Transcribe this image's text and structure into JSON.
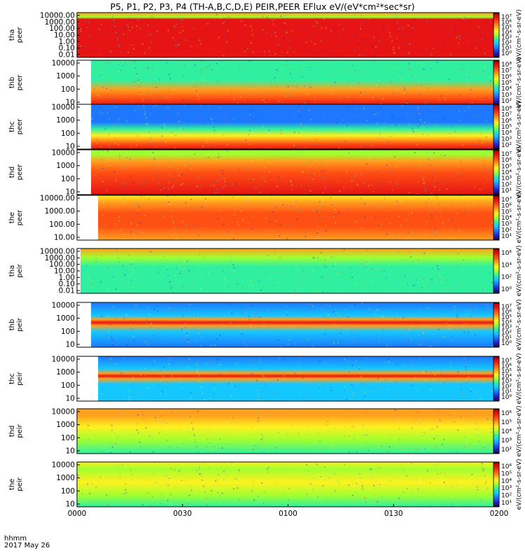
{
  "title": "P5, P1, P2, P3, P4 (TH-A,B,C,D,E) PEIR,PEER EFlux eV/(eV*cm²*sec*sr)",
  "footer": {
    "time_label": "hhmm",
    "date_label": "2017 May 26"
  },
  "colors": {
    "colorscale": [
      "#2a006e",
      "#1e28d2",
      "#1e78ff",
      "#14c8ff",
      "#30f0a0",
      "#a0ff30",
      "#fff01e",
      "#ffa01e",
      "#ff5014",
      "#e61414",
      "#b40000"
    ],
    "curve": "#000000"
  },
  "chart_data": {
    "type": "heatmap",
    "x_ticks": [
      "0000",
      "0030",
      "0100",
      "0130",
      "0200"
    ],
    "x_range": [
      0,
      120
    ],
    "x_unit": "minutes after 0000 UT",
    "panels": [
      {
        "id": "tha-peer",
        "ylabel": [
          "tha",
          "peer"
        ],
        "yticks": [
          "10000.00",
          "1000.00",
          "100.00",
          "10.00",
          "1.00",
          "0.10",
          "0.01"
        ],
        "ylim": [
          0.01,
          30000
        ],
        "yscale": "log",
        "data_start": 0,
        "cbar_ticks": [
          "10⁷",
          "10⁶",
          "10⁵",
          "10⁴",
          "10³",
          "10²",
          "10¹",
          "10⁰"
        ],
        "cbar_label": "eV/(cm²-s-sr-eV)",
        "profile": [
          [
            0.01,
            "#e61414"
          ],
          [
            0.85,
            "#e61414"
          ],
          [
            0.9,
            "#a0ff30"
          ],
          [
            1,
            "#ffa01e"
          ]
        ]
      },
      {
        "id": "thb-peer",
        "ylabel": [
          "thb",
          "peer"
        ],
        "yticks": [
          "10000",
          "1000",
          "100",
          "10"
        ],
        "ylim": [
          7,
          20000
        ],
        "yscale": "log",
        "data_start": 4,
        "cbar_ticks": [
          "10⁸",
          "10⁷",
          "10⁶",
          "10⁵",
          "10⁴",
          "10³",
          "10²"
        ],
        "cbar_label": "eV/(cm²-s-sr-eV)",
        "profile": [
          [
            0,
            "#e61414"
          ],
          [
            0.15,
            "#ff5014"
          ],
          [
            0.35,
            "#ffa01e"
          ],
          [
            0.55,
            "#30f0a0"
          ],
          [
            1,
            "#30f0a0"
          ]
        ]
      },
      {
        "id": "thc-peer",
        "ylabel": [
          "thc",
          "peer"
        ],
        "yticks": [
          "10000",
          "1000",
          "100",
          "10"
        ],
        "ylim": [
          7,
          20000
        ],
        "yscale": "log",
        "data_start": 4,
        "cbar_ticks": [
          "10⁸",
          "10⁷",
          "10⁶",
          "10⁵",
          "10⁴",
          "10³",
          "10²"
        ],
        "cbar_label": "eV/(cm²-s-sr-eV)",
        "profile": [
          [
            0,
            "#e61414"
          ],
          [
            0.12,
            "#ff5014"
          ],
          [
            0.3,
            "#fff01e"
          ],
          [
            0.45,
            "#30f0a0"
          ],
          [
            0.6,
            "#1e78ff"
          ],
          [
            1,
            "#1e78ff"
          ]
        ]
      },
      {
        "id": "thd-peer",
        "ylabel": [
          "thd",
          "peer"
        ],
        "yticks": [
          "10000",
          "1000",
          "100",
          "10"
        ],
        "ylim": [
          7,
          20000
        ],
        "yscale": "log",
        "data_start": 4,
        "cbar_ticks": [
          "10⁷",
          "10⁶",
          "10⁵",
          "10⁴",
          "10³",
          "10²",
          "10¹"
        ],
        "cbar_label": "eV/(cm²-s-sr-eV)",
        "profile": [
          [
            0,
            "#e61414"
          ],
          [
            0.5,
            "#ff5014"
          ],
          [
            0.75,
            "#ffa01e"
          ],
          [
            0.9,
            "#a0ff30"
          ],
          [
            1,
            "#a0ff30"
          ]
        ]
      },
      {
        "id": "the-peer",
        "ylabel": [
          "the",
          "peer"
        ],
        "yticks": [
          "10000.00",
          "1000.00",
          "100.00",
          "10.00"
        ],
        "ylim": [
          4,
          30000
        ],
        "yscale": "log",
        "data_start": 6,
        "cbar_ticks": [
          "10⁷",
          "10⁶",
          "10⁵",
          "10⁴",
          "10³",
          "10²",
          "10¹"
        ],
        "cbar_label": "eV/(cm²-s-sr-eV)",
        "profile": [
          [
            0,
            "#ffa01e"
          ],
          [
            0.3,
            "#ff5014"
          ],
          [
            0.6,
            "#ff5014"
          ],
          [
            0.85,
            "#ffa01e"
          ],
          [
            1,
            "#fff01e"
          ]
        ]
      },
      {
        "id": "tha-peir",
        "ylabel": [
          "tha",
          "peir"
        ],
        "yticks": [
          "10000.00",
          "1000.00",
          "100.00",
          "10.00",
          "1.00",
          "0.10",
          "0.01"
        ],
        "ylim": [
          0.01,
          30000
        ],
        "yscale": "log",
        "data_start": 1,
        "cbar_ticks": [
          "10⁶",
          "10⁴",
          "10²",
          "10⁰"
        ],
        "cbar_label": "eV/(cm²-s-sr-eV)",
        "profile": [
          [
            0.01,
            "#30f0a0"
          ],
          [
            0.6,
            "#30f0a0"
          ],
          [
            0.8,
            "#a0ff30"
          ],
          [
            1,
            "#ffa01e"
          ]
        ]
      },
      {
        "id": "thb-peir",
        "ylabel": [
          "thb",
          "peir"
        ],
        "yticks": [
          "10000",
          "1000",
          "100",
          "10"
        ],
        "ylim": [
          7,
          20000
        ],
        "yscale": "log",
        "data_start": 4,
        "cbar_ticks": [
          "10⁷",
          "10⁶",
          "10⁵",
          "10⁴",
          "10³",
          "10²",
          "10¹",
          "10⁰"
        ],
        "cbar_label": "eV/(cm²-s-sr-eV)",
        "profile": [
          [
            0,
            "#1e78ff"
          ],
          [
            0.35,
            "#14c8ff"
          ],
          [
            0.48,
            "#ffa01e"
          ],
          [
            0.55,
            "#e61414"
          ],
          [
            0.62,
            "#ffa01e"
          ],
          [
            0.7,
            "#14c8ff"
          ],
          [
            1,
            "#1e78ff"
          ]
        ]
      },
      {
        "id": "thc-peir",
        "ylabel": [
          "thc",
          "peir"
        ],
        "yticks": [
          "10000",
          "1000",
          "100",
          "10"
        ],
        "ylim": [
          7,
          20000
        ],
        "yscale": "log",
        "data_start": 6,
        "cbar_ticks": [
          "10⁷",
          "10⁶",
          "10⁵",
          "10⁴",
          "10³",
          "10²",
          "10¹",
          "10⁰"
        ],
        "cbar_label": "eV/(cm²-s-sr-eV)",
        "profile": [
          [
            0,
            "#14c8ff"
          ],
          [
            0.38,
            "#14c8ff"
          ],
          [
            0.5,
            "#ffa01e"
          ],
          [
            0.56,
            "#e61414"
          ],
          [
            0.62,
            "#ffa01e"
          ],
          [
            0.72,
            "#14c8ff"
          ],
          [
            1,
            "#1e78ff"
          ]
        ]
      },
      {
        "id": "thd-peir",
        "ylabel": [
          "thd",
          "peir"
        ],
        "yticks": [
          "10000",
          "1000",
          "100",
          "10"
        ],
        "ylim": [
          7,
          20000
        ],
        "yscale": "log",
        "data_start": 0,
        "cbar_ticks": [
          "10⁶",
          "10⁵",
          "10⁴",
          "10³",
          "10²"
        ],
        "cbar_label": "eV/(cm²-s-sr-eV)",
        "profile": [
          [
            0,
            "#30f0a0"
          ],
          [
            0.3,
            "#a0ff30"
          ],
          [
            0.6,
            "#fff01e"
          ],
          [
            0.85,
            "#ffa01e"
          ],
          [
            1,
            "#ffa01e"
          ]
        ]
      },
      {
        "id": "the-peir",
        "ylabel": [
          "the",
          "peir"
        ],
        "yticks": [
          "10000",
          "1000",
          "100",
          "10"
        ],
        "ylim": [
          7,
          20000
        ],
        "yscale": "log",
        "data_start": 0,
        "cbar_ticks": [
          "10⁶",
          "10⁵",
          "10⁴",
          "10³",
          "10²",
          "10¹"
        ],
        "cbar_label": "eV/(cm²-s-sr-eV)",
        "profile": [
          [
            0,
            "#30f0a0"
          ],
          [
            0.25,
            "#a0ff30"
          ],
          [
            0.55,
            "#fff01e"
          ],
          [
            0.85,
            "#a0ff30"
          ],
          [
            1,
            "#fff01e"
          ]
        ]
      }
    ]
  }
}
